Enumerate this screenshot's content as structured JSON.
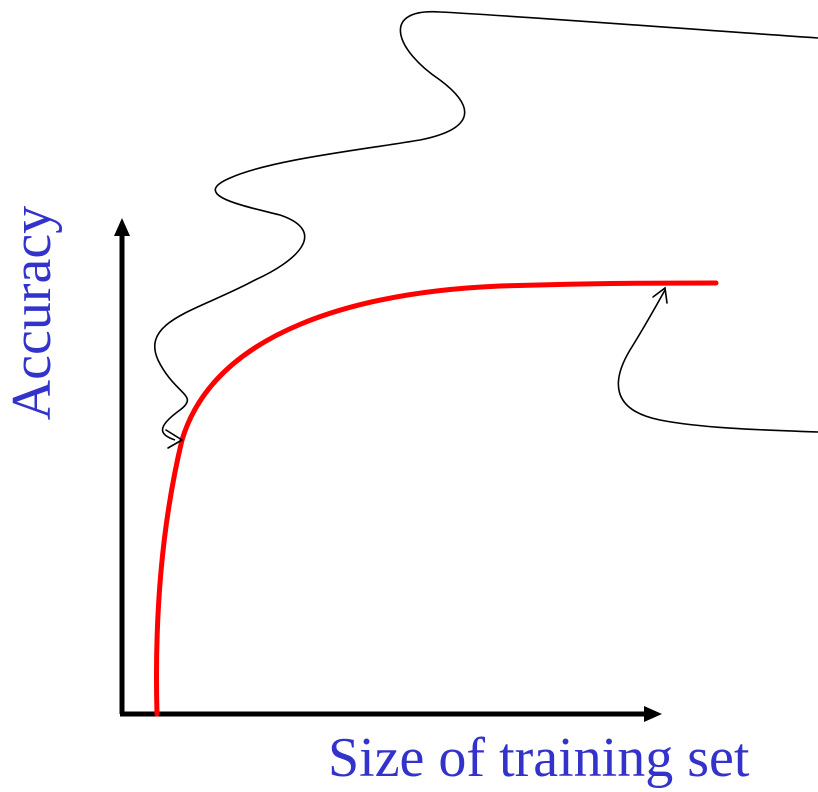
{
  "diagram": {
    "xlabel": "Size of training set",
    "ylabel": "Accuracy"
  },
  "colors": {
    "label": "#3333cc",
    "curve": "#ff0000",
    "axes": "#000000",
    "callouts": "#000000"
  }
}
